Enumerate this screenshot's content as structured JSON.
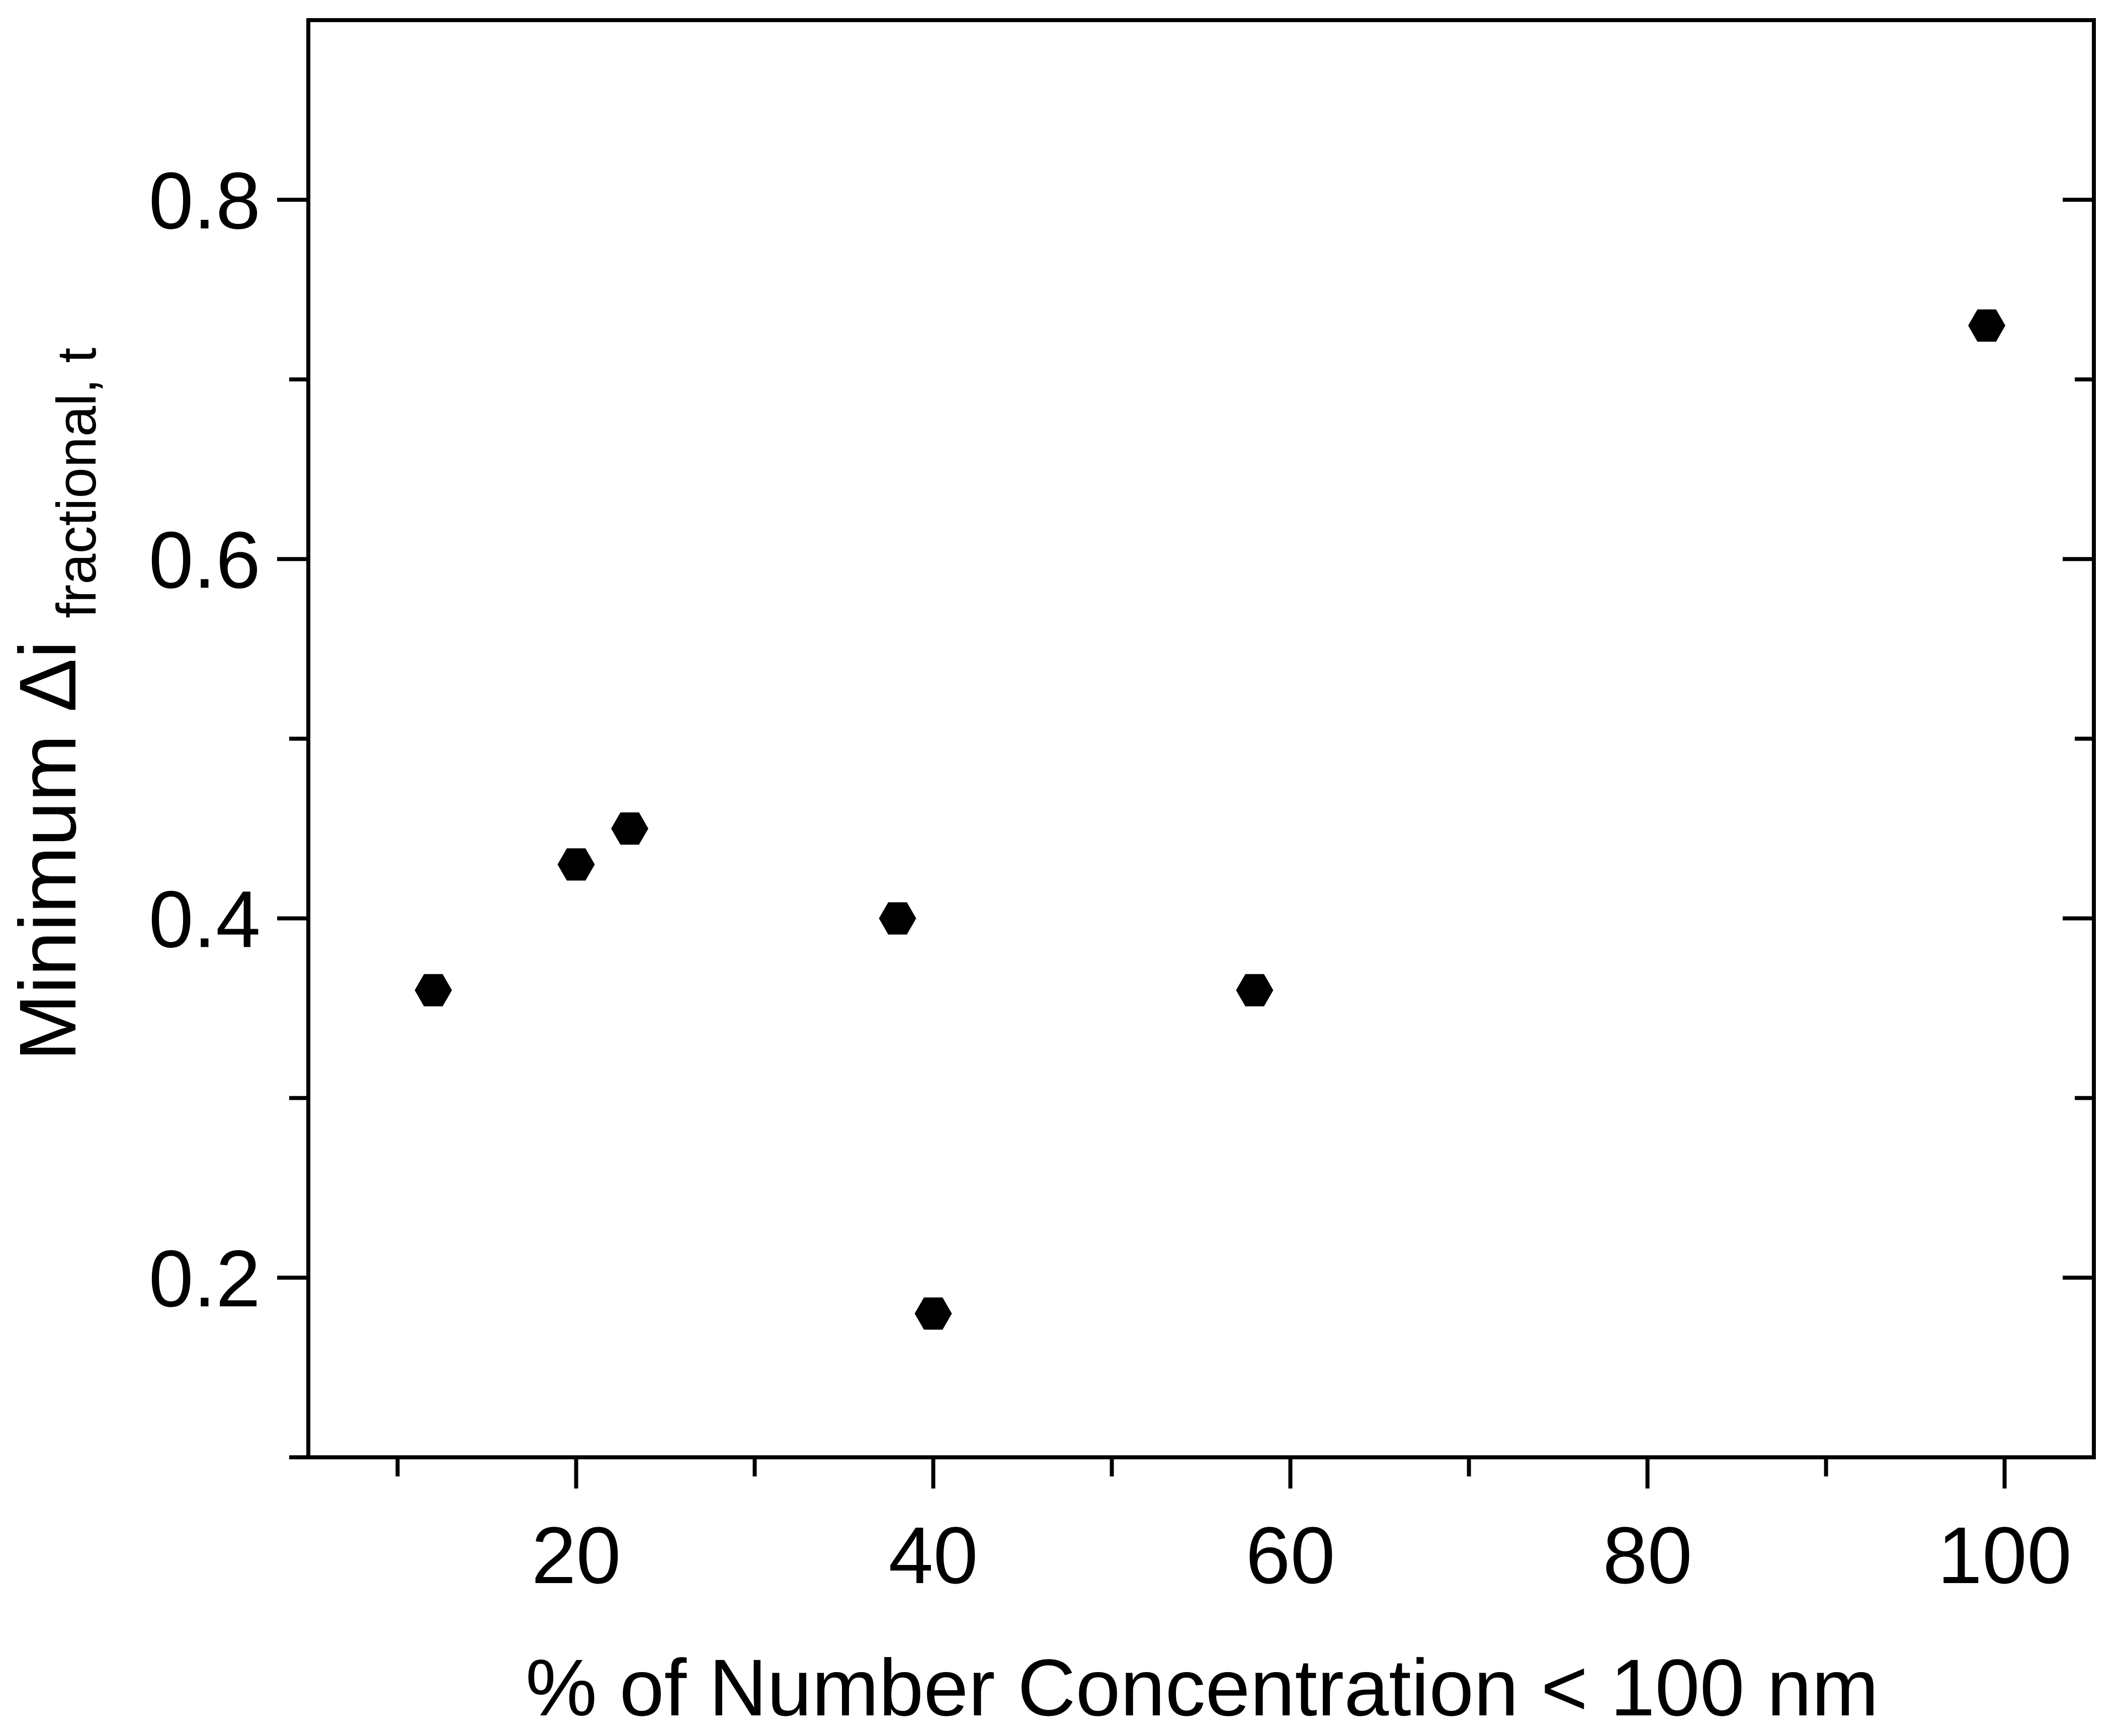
{
  "chart_data": {
    "type": "scatter",
    "xlabel": "% of Number Concentration < 100 nm",
    "ylabel": {
      "main": "Minimum Δi",
      "subscript": "fractional, t"
    },
    "xlim": [
      5,
      105
    ],
    "ylim": [
      0.1,
      0.9
    ],
    "x_ticks": [
      20,
      40,
      60,
      80,
      100
    ],
    "x_tick_labels": [
      "20",
      "40",
      "60",
      "80",
      "100"
    ],
    "x_minor_ticks": [
      10,
      30,
      50,
      70,
      90
    ],
    "y_ticks": [
      0.2,
      0.4,
      0.6,
      0.8
    ],
    "y_tick_labels": [
      "0.2",
      "0.4",
      "0.6",
      "0.8"
    ],
    "y_minor_ticks": [
      0.1,
      0.3,
      0.5,
      0.7
    ],
    "grid": false,
    "marker": "hexagon",
    "marker_color": "#000000",
    "series": [
      {
        "points": [
          {
            "x": 12,
            "y": 0.36
          },
          {
            "x": 20,
            "y": 0.43
          },
          {
            "x": 23,
            "y": 0.45
          },
          {
            "x": 38,
            "y": 0.4
          },
          {
            "x": 40,
            "y": 0.18
          },
          {
            "x": 58,
            "y": 0.36
          },
          {
            "x": 99,
            "y": 0.73
          }
        ]
      }
    ]
  }
}
